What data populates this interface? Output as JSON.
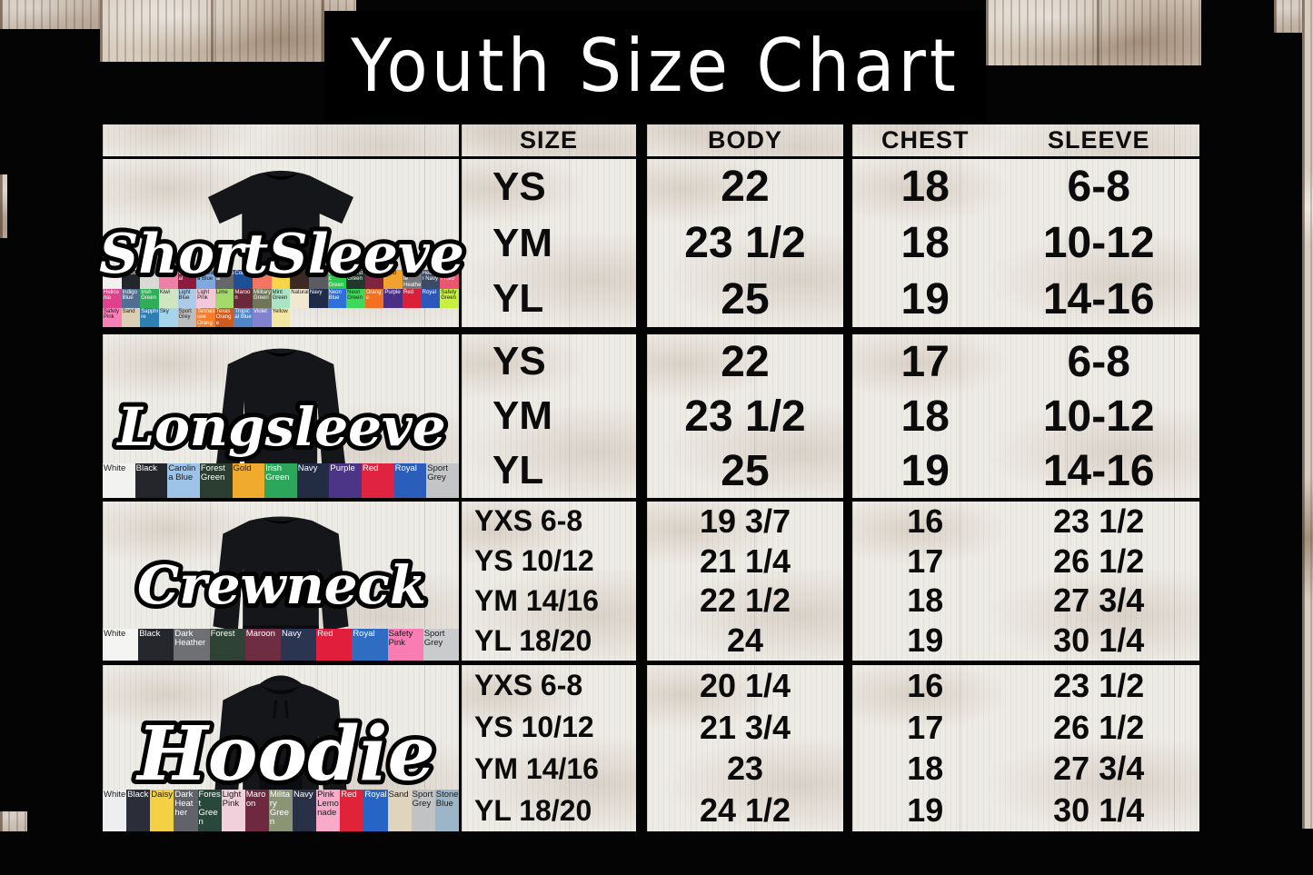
{
  "title": "Youth Size Chart",
  "header": {
    "size": "SIZE",
    "body": "BODY",
    "chest": "CHEST",
    "sleeve": "SLEEVE"
  },
  "sections": [
    {
      "name": "ShortSleeve",
      "garment": "short-sleeve-tee",
      "rows": [
        {
          "size": "YS",
          "body": "22",
          "chest": "18",
          "sleeve": "6-8"
        },
        {
          "size": "YM",
          "body": "23 1/2",
          "chest": "18",
          "sleeve": "10-12"
        },
        {
          "size": "YL",
          "body": "25",
          "chest": "19",
          "sleeve": "14-16"
        }
      ],
      "swatch_rows": [
        [
          {
            "label": "White",
            "color": "#f2f1ef"
          },
          {
            "label": "Black",
            "color": "#23262b"
          },
          {
            "label": "Ash",
            "color": "#d9dad6"
          },
          {
            "label": "Azalea",
            "color": "#ee7fa6"
          },
          {
            "label": "Cardinal",
            "color": "#8c1b3d"
          },
          {
            "label": "Carolina Blue",
            "color": "#7fa9dc"
          },
          {
            "label": "Charcoal",
            "color": "#64666b"
          },
          {
            "label": "Cobalt",
            "color": "#1d4f96"
          },
          {
            "label": "",
            "color": "#f2755f"
          },
          {
            "label": "",
            "color": "#f7d54b"
          },
          {
            "label": "",
            "color": "#3b2a24"
          },
          {
            "label": "",
            "color": "#5a5c62"
          },
          {
            "label": "Electric Green",
            "color": "#2fc84e"
          },
          {
            "label": "Forest Green",
            "color": "#20392c"
          },
          {
            "label": "Garnet",
            "color": "#7e2340"
          },
          {
            "label": "Gold",
            "color": "#f0a12f"
          },
          {
            "label": "Graphite Heather",
            "color": "#75777a"
          },
          {
            "label": "Heather Navy",
            "color": "#3c4a66"
          },
          {
            "label": "Heather Red",
            "color": "#e8566f"
          }
        ],
        [
          {
            "label": "Heliconia",
            "color": "#e0418d"
          },
          {
            "label": "Indigo Blue",
            "color": "#4f6e93"
          },
          {
            "label": "Irish Green",
            "color": "#2fae57"
          },
          {
            "label": "Kiwi",
            "color": "#cfe6c2"
          },
          {
            "label": "Light Blue",
            "color": "#abcbe9"
          },
          {
            "label": "Light Pink",
            "color": "#f4c8d9"
          },
          {
            "label": "Lime",
            "color": "#a4d96c"
          },
          {
            "label": "Maroon",
            "color": "#6b2839"
          },
          {
            "label": "Military Green",
            "color": "#6e7558"
          },
          {
            "label": "Mint Green",
            "color": "#a9e5c4"
          },
          {
            "label": "Natural",
            "color": "#f2e8d2"
          },
          {
            "label": "Navy",
            "color": "#1f2b47"
          },
          {
            "label": "Neon Blue",
            "color": "#2f6fd8"
          },
          {
            "label": "Neon Green",
            "color": "#3fd95a"
          },
          {
            "label": "Orange",
            "color": "#f3701e"
          },
          {
            "label": "Purple",
            "color": "#4b2f86"
          },
          {
            "label": "Red",
            "color": "#d92038"
          },
          {
            "label": "Royal",
            "color": "#2b58ba"
          },
          {
            "label": "Safety Green",
            "color": "#c9ef3f"
          }
        ],
        [
          {
            "label": "Safety Pink",
            "color": "#fa7fb7"
          },
          {
            "label": "Sand",
            "color": "#dbcfb4"
          },
          {
            "label": "Sapphire",
            "color": "#2c7fb0"
          },
          {
            "label": "Sky",
            "color": "#a6d4ec"
          },
          {
            "label": "Sport Grey",
            "color": "#bcbdbf"
          },
          {
            "label": "Tennessee Orange",
            "color": "#f67e2a"
          },
          {
            "label": "Texas Orange",
            "color": "#cd5a1f"
          },
          {
            "label": "Tropical Blue",
            "color": "#4f86c9"
          },
          {
            "label": "Violet",
            "color": "#8283cf"
          },
          {
            "label": "Yellow",
            "color": "#f4e6a2"
          }
        ]
      ]
    },
    {
      "name": "Longsleeve",
      "garment": "long-sleeve-tee",
      "rows": [
        {
          "size": "YS",
          "body": "22",
          "chest": "17",
          "sleeve": "6-8"
        },
        {
          "size": "YM",
          "body": "23 1/2",
          "chest": "18",
          "sleeve": "10-12"
        },
        {
          "size": "YL",
          "body": "25",
          "chest": "19",
          "sleeve": "14-16"
        }
      ],
      "swatch_rows": [
        [
          {
            "label": "White",
            "color": "#f2f2f0"
          },
          {
            "label": "Black",
            "color": "#24262b"
          },
          {
            "label": "Carolina Blue",
            "color": "#9dc4e6"
          },
          {
            "label": "Forest Green",
            "color": "#2c3e32"
          },
          {
            "label": "Gold",
            "color": "#f0ab2e"
          },
          {
            "label": "Irish Green",
            "color": "#2ca65a"
          },
          {
            "label": "Navy",
            "color": "#222c43"
          },
          {
            "label": "Purple",
            "color": "#4c3587"
          },
          {
            "label": "Red",
            "color": "#e02340"
          },
          {
            "label": "Royal",
            "color": "#2b5dbb"
          },
          {
            "label": "Sport Grey",
            "color": "#c4c5c7"
          }
        ]
      ]
    },
    {
      "name": "Crewneck",
      "garment": "crewneck-sweatshirt",
      "rows": [
        {
          "size": "YXS 6-8",
          "body": "19 3/7",
          "chest": "16",
          "sleeve": "23 1/2"
        },
        {
          "size": "YS 10/12",
          "body": "21 1/4",
          "chest": "17",
          "sleeve": "26 1/2"
        },
        {
          "size": "YM 14/16",
          "body": "22 1/2",
          "chest": "18",
          "sleeve": "27 3/4"
        },
        {
          "size": "YL 18/20",
          "body": "24",
          "chest": "19",
          "sleeve": "30 1/4"
        }
      ],
      "swatch_rows": [
        [
          {
            "label": "White",
            "color": "#f4f4f2"
          },
          {
            "label": "Black",
            "color": "#26272d"
          },
          {
            "label": "Dark Heather",
            "color": "#6f7074"
          },
          {
            "label": "Forest",
            "color": "#2e4336"
          },
          {
            "label": "Maroon",
            "color": "#6e2d43"
          },
          {
            "label": "Navy",
            "color": "#2b3450"
          },
          {
            "label": "Red",
            "color": "#e21e3d"
          },
          {
            "label": "Royal",
            "color": "#2f6dc2"
          },
          {
            "label": "Safety Pink",
            "color": "#f97cb2"
          },
          {
            "label": "Sport Grey",
            "color": "#cacbcc"
          }
        ]
      ]
    },
    {
      "name": "Hoodie",
      "garment": "pullover-hoodie",
      "rows": [
        {
          "size": "YXS 6-8",
          "body": "20 1/4",
          "chest": "16",
          "sleeve": "23 1/2"
        },
        {
          "size": "YS 10/12",
          "body": "21 3/4",
          "chest": "17",
          "sleeve": "26 1/2"
        },
        {
          "size": "YM 14/16",
          "body": "23",
          "chest": "18",
          "sleeve": "27 3/4"
        },
        {
          "size": "YL 18/20",
          "body": "24 1/2",
          "chest": "19",
          "sleeve": "30 1/4"
        }
      ],
      "swatch_rows": [
        [
          {
            "label": "White",
            "color": "#eeeef0"
          },
          {
            "label": "Black",
            "color": "#2b2d38"
          },
          {
            "label": "Daisy",
            "color": "#f3d044"
          },
          {
            "label": "Dark Heather",
            "color": "#616369"
          },
          {
            "label": "Forest Green",
            "color": "#27483b"
          },
          {
            "label": "Light Pink",
            "color": "#f0d1db"
          },
          {
            "label": "Maroon",
            "color": "#6e2941"
          },
          {
            "label": "Military Green",
            "color": "#8b9576"
          },
          {
            "label": "Navy",
            "color": "#293147"
          },
          {
            "label": "Pink Lemonade",
            "color": "#f9aac9"
          },
          {
            "label": "Red",
            "color": "#e12339"
          },
          {
            "label": "Royal",
            "color": "#2664c5"
          },
          {
            "label": "Sand",
            "color": "#dfd5be"
          },
          {
            "label": "Sport Grey",
            "color": "#c0c2c4"
          },
          {
            "label": "Stone Blue",
            "color": "#9db5c9"
          }
        ]
      ]
    }
  ],
  "accent_colors": {
    "background": "#000000",
    "ink": "#0b0b0b",
    "title_text": "#ffffff"
  }
}
